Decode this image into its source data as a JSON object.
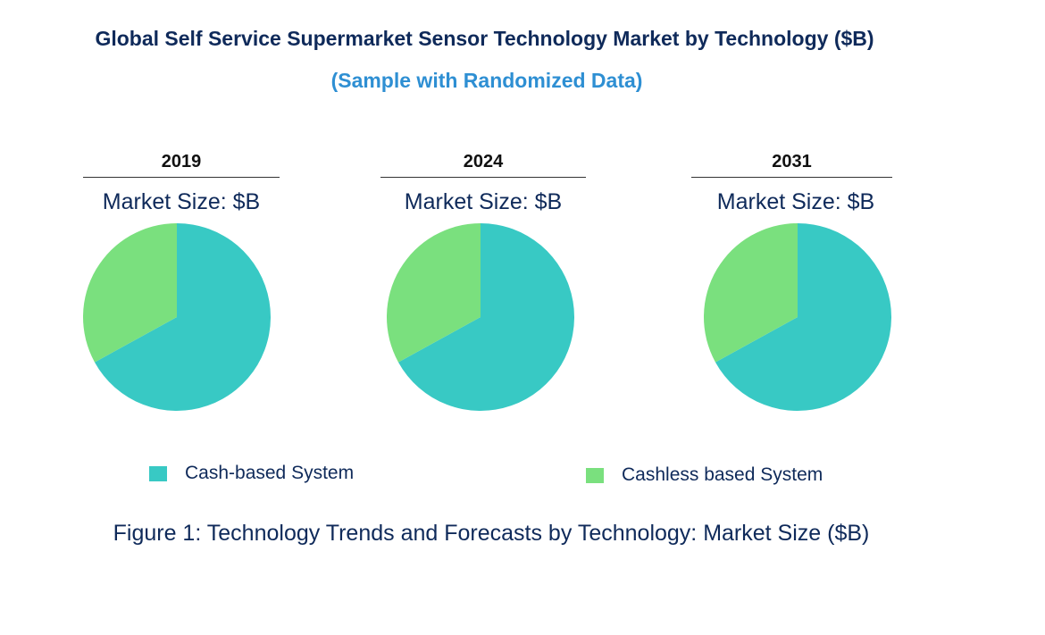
{
  "chart_data": {
    "type": "pie",
    "title": "Global Self Service Supermarket Sensor Technology Market by Technology ($B)",
    "subtitle": "(Sample with Randomized Data)",
    "caption": "Figure 1: Technology Trends and Forecasts by Technology: Market Size ($B)",
    "legend_position": "bottom",
    "series_names": [
      "Cash-based System",
      "Cashless based System"
    ],
    "colors": [
      "#38c9c4",
      "#7ae07e"
    ],
    "pies": [
      {
        "year": "2019",
        "label": "Market Size: $B",
        "values": [
          67,
          33
        ]
      },
      {
        "year": "2024",
        "label": "Market Size: $B",
        "values": [
          67,
          33
        ]
      },
      {
        "year": "2031",
        "label": "Market Size: $B",
        "values": [
          67,
          33
        ]
      }
    ]
  }
}
